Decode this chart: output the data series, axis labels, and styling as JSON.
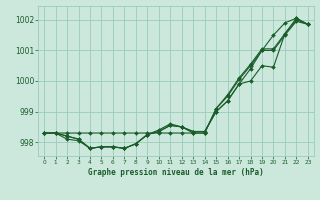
{
  "title": "Graphe pression niveau de la mer (hPa)",
  "bg_color": "#cce8dd",
  "grid_color": "#99ccbb",
  "line_color": "#1a5c2a",
  "marker_color": "#1a5c2a",
  "xlim": [
    -0.5,
    23.5
  ],
  "ylim": [
    997.55,
    1002.45
  ],
  "yticks": [
    998,
    999,
    1000,
    1001,
    1002
  ],
  "xticks": [
    0,
    1,
    2,
    3,
    4,
    5,
    6,
    7,
    8,
    9,
    10,
    11,
    12,
    13,
    14,
    15,
    16,
    17,
    18,
    19,
    20,
    21,
    22,
    23
  ],
  "series": [
    [
      998.3,
      998.3,
      998.2,
      998.1,
      997.8,
      997.85,
      997.85,
      997.8,
      997.95,
      998.25,
      998.35,
      998.55,
      998.5,
      998.35,
      998.35,
      999.0,
      999.35,
      999.9,
      1000.0,
      1000.5,
      1000.45,
      1001.55,
      1002.0,
      1001.85
    ],
    [
      998.3,
      998.3,
      998.2,
      998.1,
      997.8,
      997.85,
      997.85,
      997.8,
      997.95,
      998.25,
      998.35,
      998.55,
      998.5,
      998.35,
      998.35,
      999.0,
      999.35,
      999.9,
      1000.4,
      1001.0,
      1001.5,
      1001.9,
      1002.05,
      1001.85
    ],
    [
      998.3,
      998.3,
      998.1,
      998.05,
      997.8,
      997.85,
      997.85,
      997.8,
      997.95,
      998.25,
      998.4,
      998.6,
      998.5,
      998.3,
      998.3,
      999.1,
      999.5,
      1000.05,
      1000.5,
      1001.0,
      1001.0,
      1001.5,
      1001.95,
      1001.85
    ],
    [
      998.3,
      998.3,
      998.3,
      998.3,
      998.3,
      998.3,
      998.3,
      998.3,
      998.3,
      998.3,
      998.3,
      998.3,
      998.3,
      998.3,
      998.3,
      999.1,
      999.55,
      1000.1,
      1000.55,
      1001.05,
      1001.05,
      1001.55,
      1002.05,
      1001.85
    ]
  ],
  "figsize": [
    3.2,
    2.0
  ],
  "dpi": 100
}
